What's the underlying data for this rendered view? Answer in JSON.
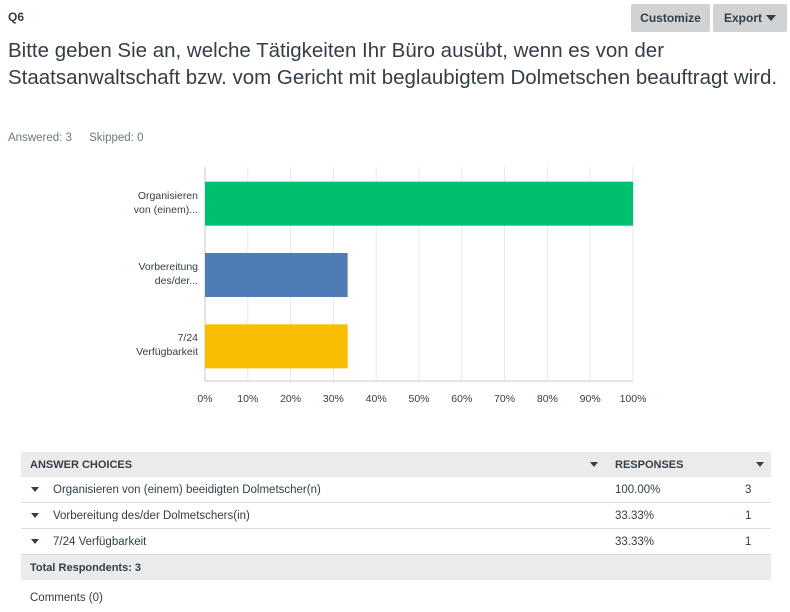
{
  "header": {
    "question_number": "Q6",
    "customize_label": "Customize",
    "export_label": "Export"
  },
  "question": {
    "text": "Bitte geben Sie an, welche Tätigkeiten Ihr Büro ausübt, wenn es von der Staatsanwaltschaft bzw. vom Gericht mit beglaubigtem Dolmetschen beauftragt wird.",
    "answered": "Answered: 3",
    "skipped": "Skipped: 0"
  },
  "chart_data": {
    "type": "bar",
    "orientation": "horizontal",
    "categories": [
      "Organisieren von (einem)...",
      "Vorbereitung des/der...",
      "7/24 Verfügbarkeit"
    ],
    "category_lines": [
      [
        "Organisieren",
        "von (einem)..."
      ],
      [
        "Vorbereitung",
        "des/der..."
      ],
      [
        "7/24",
        "Verfügbarkeit"
      ]
    ],
    "values": [
      100,
      33.33,
      33.33
    ],
    "colors": [
      "#00bf6f",
      "#507cb6",
      "#f9be00"
    ],
    "xlim": [
      0,
      100
    ],
    "ticks": [
      "0%",
      "10%",
      "20%",
      "30%",
      "40%",
      "50%",
      "60%",
      "70%",
      "80%",
      "90%",
      "100%"
    ],
    "grid": true
  },
  "table": {
    "header_choices": "ANSWER CHOICES",
    "header_responses": "RESPONSES",
    "rows": [
      {
        "choice": "Organisieren von (einem) beeidigten Dolmetscher(n)",
        "percent": "100.00%",
        "count": "3"
      },
      {
        "choice": "Vorbereitung des/der Dolmetschers(in)",
        "percent": "33.33%",
        "count": "1"
      },
      {
        "choice": "7/24 Verfügbarkeit",
        "percent": "33.33%",
        "count": "1"
      }
    ],
    "total": "Total Respondents: 3"
  },
  "comments": "Comments (0)"
}
